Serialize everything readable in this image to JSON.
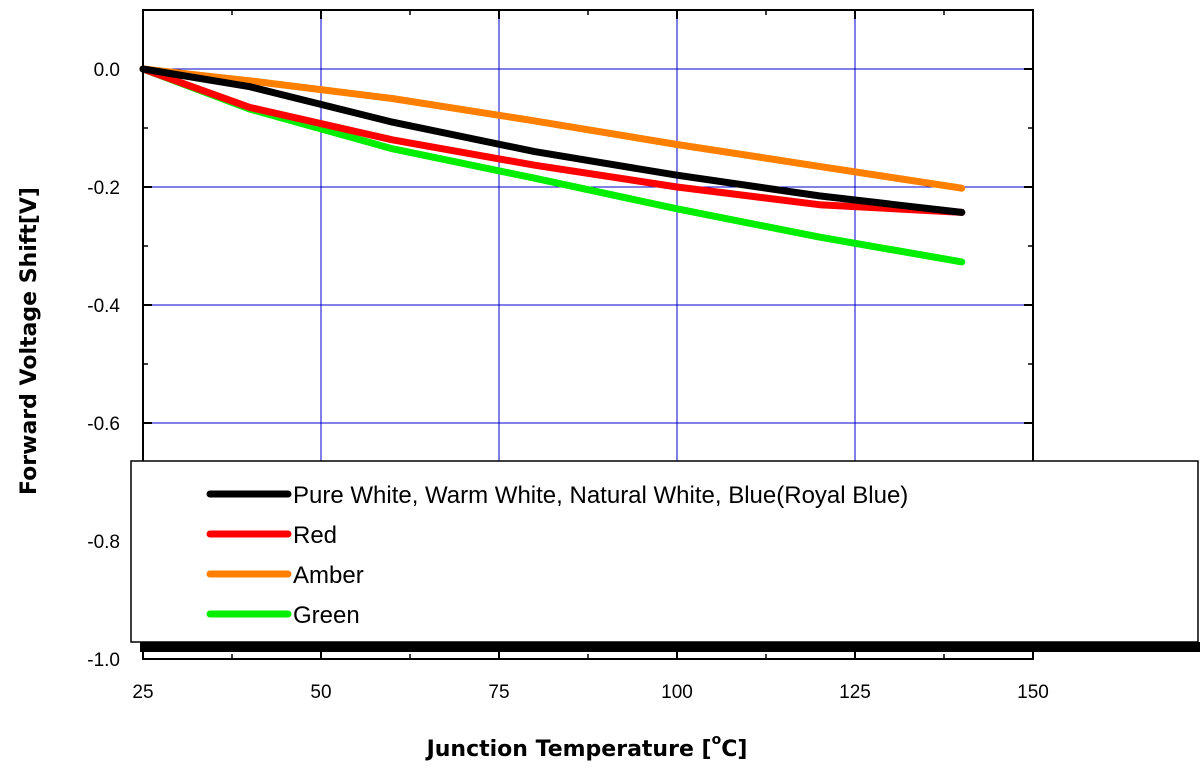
{
  "chart_data": {
    "type": "line",
    "xlabel_main": "Junction Temperature [",
    "xlabel_sup": "o",
    "xlabel_end": "C]",
    "ylabel": "Forward Voltage Shift[V]",
    "xlim": [
      25,
      150
    ],
    "ylim": [
      -1.0,
      0.1
    ],
    "x_ticks": [
      "25",
      "50",
      "75",
      "100",
      "125",
      "150"
    ],
    "y_ticks": [
      "0.0",
      "-0.2",
      "-0.4",
      "-0.6",
      "-0.8",
      "-1.0"
    ],
    "grid": true,
    "grid_color": "#0000cc",
    "legend_placement": "bottom",
    "series": [
      {
        "name": "Pure White, Warm White, Natural White, Blue(Royal Blue)",
        "color": "#000000",
        "x": [
          25,
          40,
          60,
          80,
          100,
          120,
          140
        ],
        "y": [
          0.0,
          -0.03,
          -0.09,
          -0.14,
          -0.18,
          -0.215,
          -0.243
        ]
      },
      {
        "name": "Red",
        "color": "#ff0000",
        "x": [
          25,
          40,
          60,
          80,
          100,
          120,
          140
        ],
        "y": [
          0.0,
          -0.065,
          -0.12,
          -0.163,
          -0.2,
          -0.23,
          -0.243
        ]
      },
      {
        "name": "Amber",
        "color": "#ff8000",
        "x": [
          25,
          40,
          60,
          80,
          100,
          120,
          140
        ],
        "y": [
          0.0,
          -0.02,
          -0.05,
          -0.088,
          -0.128,
          -0.165,
          -0.202
        ]
      },
      {
        "name": "Green",
        "color": "#00ee00",
        "x": [
          25,
          40,
          60,
          80,
          100,
          120,
          140
        ],
        "y": [
          0.0,
          -0.068,
          -0.135,
          -0.185,
          -0.237,
          -0.285,
          -0.327
        ]
      }
    ]
  }
}
